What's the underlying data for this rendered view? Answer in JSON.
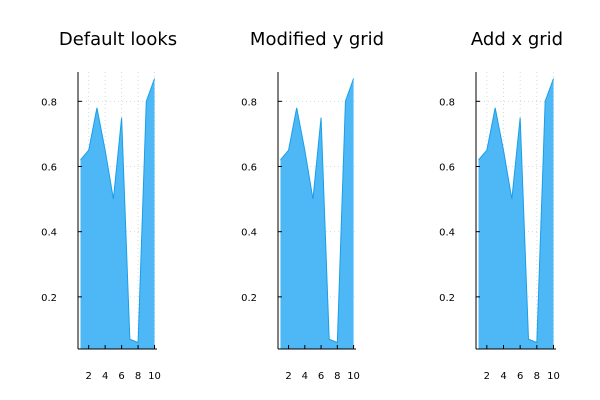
{
  "chart_data": [
    {
      "type": "area",
      "title": "Default looks",
      "x": [
        1,
        2,
        3,
        4,
        5,
        6,
        7,
        8,
        9,
        10
      ],
      "series": [
        {
          "values": [
            0.62,
            0.65,
            0.78,
            0.65,
            0.5,
            0.75,
            0.07,
            0.06,
            0.8,
            0.87
          ]
        }
      ],
      "xlim": [
        0.7,
        10.3
      ],
      "ylim": [
        0.04,
        0.89
      ],
      "xticks": [
        2,
        4,
        6,
        8,
        10
      ],
      "yticks": [
        0.2,
        0.4,
        0.6,
        0.8
      ],
      "xtick_labels": [
        "2",
        "4",
        "6",
        "8",
        "10"
      ],
      "ytick_labels": [
        "0.2",
        "0.4",
        "0.6",
        "0.8"
      ],
      "grid": {
        "x": true,
        "y": true
      },
      "fill_color": "#4db8f5",
      "line_color": "#1a9fe8"
    },
    {
      "type": "area",
      "title": "Modified y grid",
      "x": [
        1,
        2,
        3,
        4,
        5,
        6,
        7,
        8,
        9,
        10
      ],
      "series": [
        {
          "values": [
            0.62,
            0.65,
            0.78,
            0.65,
            0.5,
            0.75,
            0.07,
            0.06,
            0.8,
            0.87
          ]
        }
      ],
      "xlim": [
        0.7,
        10.3
      ],
      "ylim": [
        0.04,
        0.89
      ],
      "xticks": [
        2,
        4,
        6,
        8,
        10
      ],
      "yticks": [
        0.2,
        0.4,
        0.6,
        0.8
      ],
      "xtick_labels": [
        "2",
        "4",
        "6",
        "8",
        "10"
      ],
      "ytick_labels": [
        "0.2",
        "0.4",
        "0.6",
        "0.8"
      ],
      "grid": {
        "x": false,
        "y": true
      },
      "fill_color": "#4db8f5",
      "line_color": "#1a9fe8"
    },
    {
      "type": "area",
      "title": "Add x grid",
      "x": [
        1,
        2,
        3,
        4,
        5,
        6,
        7,
        8,
        9,
        10
      ],
      "series": [
        {
          "values": [
            0.62,
            0.65,
            0.78,
            0.65,
            0.5,
            0.75,
            0.07,
            0.06,
            0.8,
            0.87
          ]
        }
      ],
      "xlim": [
        0.7,
        10.3
      ],
      "ylim": [
        0.04,
        0.89
      ],
      "xticks": [
        2,
        4,
        6,
        8,
        10
      ],
      "yticks": [
        0.2,
        0.4,
        0.6,
        0.8
      ],
      "xtick_labels": [
        "2",
        "4",
        "6",
        "8",
        "10"
      ],
      "ytick_labels": [
        "0.2",
        "0.4",
        "0.6",
        "0.8"
      ],
      "grid": {
        "x": true,
        "y": true
      },
      "fill_color": "#4db8f5",
      "line_color": "#1a9fe8"
    }
  ]
}
